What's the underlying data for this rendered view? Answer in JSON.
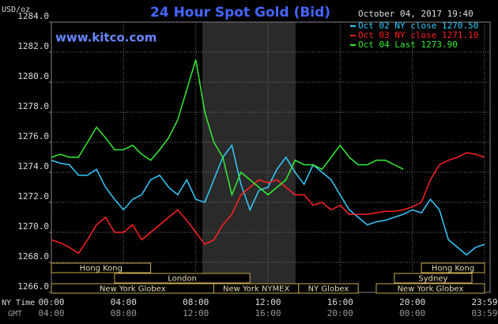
{
  "chart_data": {
    "type": "line",
    "title": "24 Hour Spot Gold (Bid)",
    "source": "www.kitco.com",
    "timestamp": "October 04, 2017 19:40",
    "ylabel": "USD/oz",
    "xlabel": "NY Time",
    "x2label": "GMT",
    "x": [
      0,
      0.5,
      1,
      1.5,
      2,
      2.5,
      3,
      3.5,
      4,
      4.5,
      5,
      5.5,
      6,
      6.5,
      7,
      7.5,
      8,
      8.5,
      9,
      9.5,
      10,
      10.5,
      11,
      11.5,
      12,
      12.5,
      13,
      13.5,
      14,
      14.5,
      15,
      15.5,
      16,
      16.5,
      17,
      17.5,
      18,
      18.5,
      19,
      19.5,
      20,
      20.5,
      21,
      21.5,
      22,
      22.5,
      23,
      23.5,
      24
    ],
    "series": [
      {
        "name": "Oct 02 NY close 1270.50",
        "color": "#33ccff",
        "values": [
          1274.8,
          1274.6,
          1274.5,
          1273.8,
          1273.8,
          1274.2,
          1273.0,
          1272.2,
          1271.5,
          1272.2,
          1272.5,
          1273.5,
          1273.8,
          1273.0,
          1272.5,
          1273.5,
          1272.2,
          1272.0,
          1273.5,
          1275.0,
          1275.8,
          1273.2,
          1271.5,
          1272.8,
          1273.0,
          1274.2,
          1275.0,
          1274.0,
          1273.2,
          1274.5,
          1274.0,
          1273.5,
          1272.5,
          1271.5,
          1271.0,
          1270.5,
          1270.7,
          1270.8,
          1271.0,
          1271.2,
          1271.5,
          1271.3,
          1272.2,
          1271.5,
          1269.5,
          1269.0,
          1268.5,
          1269.0,
          1269.2
        ]
      },
      {
        "name": "Oct 03 NY close 1271.10",
        "color": "#ff2222",
        "values": [
          1269.5,
          1269.3,
          1269.0,
          1268.6,
          1269.5,
          1270.5,
          1271.0,
          1270.0,
          1270.0,
          1270.5,
          1269.5,
          1270.0,
          1270.5,
          1271.0,
          1271.5,
          1270.8,
          1270.0,
          1269.2,
          1269.5,
          1270.5,
          1271.2,
          1272.5,
          1273.0,
          1273.5,
          1273.3,
          1273.5,
          1273.0,
          1272.5,
          1272.5,
          1271.8,
          1272.0,
          1271.5,
          1271.8,
          1271.2,
          1271.2,
          1271.2,
          1271.3,
          1271.4,
          1271.4,
          1271.5,
          1271.7,
          1272.0,
          1273.5,
          1274.5,
          1274.8,
          1275.0,
          1275.3,
          1275.2,
          1275.0
        ]
      },
      {
        "name": "Oct 04 Last 1273.90",
        "color": "#33ee33",
        "values": [
          1275.0,
          1275.2,
          1275.0,
          1275.0,
          1276.0,
          1277.0,
          1276.3,
          1275.5,
          1275.5,
          1275.8,
          1275.2,
          1274.8,
          1275.5,
          1276.3,
          1277.5,
          1279.5,
          1281.5,
          1278.0,
          1276.0,
          1275.0,
          1272.5,
          1274.0,
          1273.5,
          1273.0,
          1272.5,
          1273.0,
          1273.5,
          1274.8,
          1274.5,
          1274.5,
          1274.2,
          1275.0,
          1275.8,
          1275.0,
          1274.5,
          1274.5,
          1274.8,
          1274.8,
          1274.5,
          1274.2,
          null,
          null,
          null,
          null,
          null,
          null,
          null,
          null,
          null
        ]
      }
    ],
    "xlim": [
      0,
      24
    ],
    "ylim": [
      1266,
      1284
    ],
    "yticks": [
      {
        "value": 1266,
        "label": "1266.0"
      },
      {
        "value": 1268,
        "label": "1268.0"
      },
      {
        "value": 1270,
        "label": "1270.0"
      },
      {
        "value": 1272,
        "label": "1272.0"
      },
      {
        "value": 1274,
        "label": "1274.0"
      },
      {
        "value": 1276,
        "label": "1276.0"
      },
      {
        "value": 1278,
        "label": "1278.0"
      },
      {
        "value": 1280,
        "label": "1280.0"
      },
      {
        "value": 1282,
        "label": "1282.0"
      },
      {
        "value": 1284,
        "label": "1284.0"
      }
    ],
    "xticks": [
      {
        "value": 0,
        "label": "00:00"
      },
      {
        "value": 4,
        "label": "04:00"
      },
      {
        "value": 8,
        "label": "08:00"
      },
      {
        "value": 12,
        "label": "12:00"
      },
      {
        "value": 16,
        "label": "16:00"
      },
      {
        "value": 20,
        "label": "20:00"
      },
      {
        "value": 24,
        "label": "23:59"
      }
    ],
    "x2ticks": [
      {
        "value": 0,
        "label": "04:00"
      },
      {
        "value": 4,
        "label": "08:00"
      },
      {
        "value": 8,
        "label": "12:00"
      },
      {
        "value": 12,
        "label": "16:00"
      },
      {
        "value": 16,
        "label": "20:00"
      },
      {
        "value": 20,
        "label": "00:00"
      },
      {
        "value": 24,
        "label": "03:59"
      }
    ],
    "grid": true,
    "legend": "top-right",
    "session_rows": [
      [
        {
          "label": "Hong Kong",
          "start": 0,
          "end": 5.5
        },
        {
          "label": "Hong Kong",
          "start": 20.5,
          "end": 24
        }
      ],
      [
        {
          "label": "London",
          "start": 3.5,
          "end": 11
        },
        {
          "label": "Sydney",
          "start": 19,
          "end": 23.3
        }
      ],
      [
        {
          "label": "New York Globex",
          "start": 0,
          "end": 9
        },
        {
          "label": "New York NYMEX",
          "start": 9,
          "end": 13.7
        },
        {
          "label": "NY Globex",
          "start": 13.7,
          "end": 17
        },
        {
          "label": "New York Globex",
          "start": 18,
          "end": 24
        }
      ]
    ]
  }
}
